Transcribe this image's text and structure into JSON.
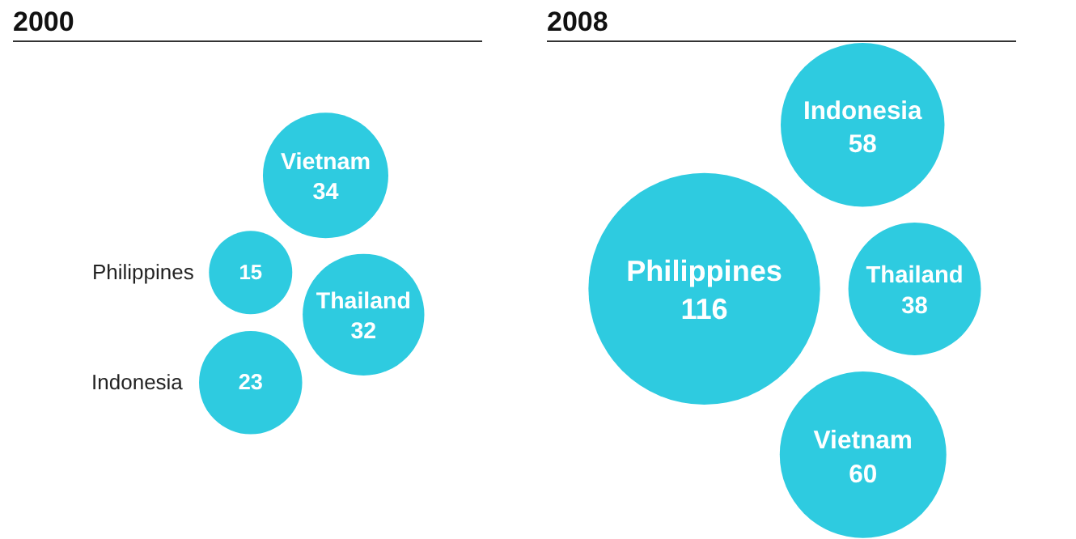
{
  "chart_data": [
    {
      "type": "other",
      "title": "2000",
      "categories": [
        "Philippines",
        "Indonesia",
        "Thailand",
        "Vietnam"
      ],
      "values": [
        15,
        23,
        32,
        34
      ],
      "color": "#2ecbe0",
      "data_labels": true
    },
    {
      "type": "other",
      "title": "2008",
      "categories": [
        "Philippines",
        "Thailand",
        "Vietnam",
        "Indonesia"
      ],
      "values": [
        116,
        38,
        60,
        58
      ],
      "color": "#2ecbe0",
      "data_labels": true
    }
  ]
}
